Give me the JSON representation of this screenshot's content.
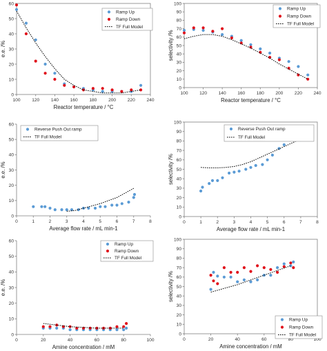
{
  "colors": {
    "ramp_up": "#5b9bd5",
    "ramp_down": "#e0101b",
    "model": "#000000",
    "single": "#5b9bd5"
  },
  "chart_data": [
    {
      "id": "a",
      "type": "scatter",
      "xlabel": "Reactor temperature / °C",
      "ylabel": "e.e. /%",
      "xlim": [
        100,
        240
      ],
      "ylim": [
        0,
        60
      ],
      "xticks": [
        100,
        120,
        140,
        160,
        180,
        200,
        220,
        240
      ],
      "yticks": [
        0,
        10,
        20,
        30,
        40,
        50,
        60
      ],
      "xtick_labels": [
        "100",
        "120",
        "140",
        "160",
        "180",
        "200",
        "220",
        "240"
      ],
      "ytick_labels": [
        "0",
        "10",
        "20",
        "30",
        "40",
        "50",
        "60"
      ],
      "frame": true,
      "legend_position": "top-right",
      "series": [
        {
          "name": "Ramp Up",
          "kind": "points",
          "color": "#5b9bd5",
          "x": [
            100,
            110,
            120,
            130,
            140,
            150,
            160,
            170,
            180,
            190,
            200,
            210,
            220,
            230
          ],
          "y": [
            56,
            47,
            36,
            20,
            14,
            7,
            5,
            4,
            3,
            2,
            2,
            2,
            2,
            6
          ]
        },
        {
          "name": "Ramp Down",
          "kind": "points",
          "color": "#e0101b",
          "x": [
            100,
            110,
            120,
            130,
            140,
            150,
            160,
            170,
            180,
            190,
            200,
            210,
            220,
            230
          ],
          "y": [
            59,
            40,
            22,
            14,
            10,
            6,
            5,
            3,
            4,
            4,
            3,
            2,
            3,
            3
          ]
        },
        {
          "name": "TF Full Model",
          "kind": "line",
          "color": "#000000",
          "x": [
            100,
            110,
            120,
            130,
            140,
            150,
            160,
            170,
            180,
            190,
            200,
            210,
            220,
            230
          ],
          "y": [
            55,
            44,
            34,
            25,
            17,
            10,
            6,
            3,
            2,
            1,
            1,
            1,
            2,
            3
          ]
        }
      ]
    },
    {
      "id": "b",
      "type": "scatter",
      "xlabel": "Reactor temperature / °C",
      "ylabel": "selectivity /%",
      "xlim": [
        100,
        240
      ],
      "ylim": [
        0,
        100
      ],
      "xticks": [
        100,
        120,
        140,
        160,
        180,
        200,
        220,
        240
      ],
      "yticks": [
        0,
        10,
        20,
        30,
        40,
        50,
        60,
        70,
        80,
        90,
        100
      ],
      "xtick_labels": [
        "100",
        "120",
        "140",
        "160",
        "180",
        "200",
        "220",
        "240"
      ],
      "ytick_labels": [
        "0",
        "10",
        "20",
        "30",
        "40",
        "50",
        "60",
        "70",
        "80",
        "90",
        "100"
      ],
      "frame": true,
      "legend_position": "top-right",
      "series": [
        {
          "name": "Ramp Up",
          "kind": "points",
          "color": "#5b9bd5",
          "x": [
            100,
            110,
            120,
            130,
            140,
            150,
            160,
            170,
            180,
            190,
            200,
            210,
            220,
            230
          ],
          "y": [
            68,
            69,
            68,
            66,
            63,
            61,
            56,
            51,
            46,
            41,
            35,
            31,
            25,
            15
          ]
        },
        {
          "name": "Ramp Down",
          "kind": "points",
          "color": "#e0101b",
          "x": [
            100,
            110,
            120,
            130,
            140,
            150,
            160,
            170,
            180,
            190,
            200,
            210,
            220,
            230
          ],
          "y": [
            65,
            71,
            71,
            67,
            70,
            59,
            53,
            48,
            42,
            36,
            33,
            23,
            15,
            10
          ]
        },
        {
          "name": "TF Full Model",
          "kind": "line",
          "color": "#000000",
          "x": [
            100,
            110,
            120,
            130,
            140,
            150,
            160,
            170,
            180,
            190,
            200,
            210,
            220,
            230
          ],
          "y": [
            58,
            61,
            63,
            63,
            61,
            57,
            52,
            47,
            41,
            35,
            28,
            22,
            16,
            10
          ]
        }
      ]
    },
    {
      "id": "c",
      "type": "scatter",
      "xlabel": "Average flow rate / mL min-1",
      "ylabel": "e.e. /%",
      "xlim": [
        0,
        8
      ],
      "ylim": [
        0,
        60
      ],
      "xticks": [
        0,
        1,
        2,
        3,
        4,
        5,
        6,
        7,
        8
      ],
      "yticks": [
        0,
        10,
        20,
        30,
        40,
        50,
        60
      ],
      "xtick_labels": [
        "0",
        "1",
        "2",
        "3",
        "4",
        "5",
        "6",
        "7",
        "8"
      ],
      "ytick_labels": [
        "0",
        "10",
        "20",
        "30",
        "40",
        "50",
        "60"
      ],
      "frame": false,
      "legend_position": "top-left",
      "series": [
        {
          "name": "Reverse Push Out ramp",
          "kind": "points",
          "color": "#5b9bd5",
          "x": [
            1,
            1.5,
            1.7,
            2,
            2.3,
            2.7,
            3,
            3.3,
            3.7,
            4,
            4.3,
            4.7,
            5,
            5.3,
            5.7,
            6,
            6.3,
            6.7,
            7,
            7.05
          ],
          "y": [
            6,
            6,
            6,
            5,
            4,
            4,
            4,
            4,
            4,
            5,
            5,
            5,
            6,
            6,
            7,
            7,
            8,
            9,
            12,
            14
          ]
        },
        {
          "name": "TF Full Model",
          "kind": "line",
          "color": "#000000",
          "x": [
            3,
            3.5,
            4,
            4.5,
            5,
            5.5,
            6,
            6.5,
            7
          ],
          "y": [
            3,
            3.5,
            5,
            6.5,
            8,
            10,
            12,
            15,
            18
          ]
        }
      ]
    },
    {
      "id": "d",
      "type": "scatter",
      "xlabel": "Average flow rate / mL min-1",
      "ylabel": "selectivity /%",
      "xlim": [
        0,
        8
      ],
      "ylim": [
        0,
        100
      ],
      "xticks": [
        0,
        1,
        2,
        3,
        4,
        5,
        6,
        7,
        8
      ],
      "yticks": [
        0,
        10,
        20,
        30,
        40,
        50,
        60,
        70,
        80,
        90,
        100
      ],
      "xtick_labels": [
        "0",
        "1",
        "2",
        "3",
        "4",
        "5",
        "6",
        "7",
        "8"
      ],
      "ytick_labels": [
        "0",
        "10",
        "20",
        "30",
        "40",
        "50",
        "60",
        "70",
        "80",
        "90",
        "100"
      ],
      "frame": true,
      "legend_position": "top-right",
      "series": [
        {
          "name": "Reverse Push Out ramp",
          "kind": "points",
          "color": "#5b9bd5",
          "x": [
            1,
            1.1,
            1.5,
            1.7,
            2,
            2.3,
            2.7,
            3,
            3.3,
            3.7,
            4,
            4.3,
            4.7,
            5,
            5.3,
            5.7,
            6,
            6.3,
            6.6,
            6.9,
            7,
            7.05
          ],
          "y": [
            27,
            31,
            35,
            38,
            38,
            41,
            46,
            47,
            48,
            50,
            52,
            54,
            55,
            60,
            65,
            72,
            76,
            83,
            85,
            83,
            81,
            84
          ]
        },
        {
          "name": "TF Full Model",
          "kind": "line",
          "color": "#000000",
          "x": [
            1,
            1.5,
            2,
            2.5,
            3,
            3.5,
            4,
            4.5,
            5,
            5.5,
            6,
            6.5,
            7
          ],
          "y": [
            52,
            51.5,
            51.5,
            52,
            53,
            55,
            58,
            62,
            66,
            70,
            74,
            78,
            82
          ]
        }
      ]
    },
    {
      "id": "e",
      "type": "scatter",
      "xlabel": "Amine concentration / mM",
      "ylabel": "e.e. /%",
      "xlim": [
        0,
        100
      ],
      "ylim": [
        0,
        60
      ],
      "xticks": [
        0,
        20,
        40,
        60,
        80,
        100
      ],
      "yticks": [
        0,
        10,
        20,
        30,
        40,
        50,
        60
      ],
      "xtick_labels": [
        "0",
        "20",
        "40",
        "60",
        "80",
        "100"
      ],
      "ytick_labels": [
        "0",
        "10",
        "20",
        "30",
        "40",
        "50",
        "60"
      ],
      "frame": false,
      "legend_position": "top-right",
      "series": [
        {
          "name": "Ramp Up",
          "kind": "points",
          "color": "#5b9bd5",
          "x": [
            20,
            25,
            30,
            35,
            40,
            45,
            50,
            55,
            60,
            65,
            70,
            75,
            80,
            82
          ],
          "y": [
            4,
            4,
            4,
            4,
            3,
            3,
            3,
            3,
            3,
            3,
            3,
            3,
            3,
            4
          ]
        },
        {
          "name": "Ramp Down",
          "kind": "points",
          "color": "#e0101b",
          "x": [
            20,
            25,
            30,
            35,
            40,
            45,
            50,
            55,
            60,
            65,
            70,
            75,
            80,
            82
          ],
          "y": [
            5,
            5,
            6,
            5,
            5,
            4,
            4,
            4,
            4,
            4,
            4,
            5,
            5,
            7
          ]
        },
        {
          "name": "TF Full Model",
          "kind": "line",
          "color": "#000000",
          "x": [
            20,
            30,
            40,
            50,
            60,
            70,
            80
          ],
          "y": [
            7,
            6,
            5,
            4.5,
            4,
            4,
            4
          ]
        }
      ]
    },
    {
      "id": "f",
      "type": "scatter",
      "xlabel": "Amine concentration / mM",
      "ylabel": "selectivity /%",
      "xlim": [
        0,
        100
      ],
      "ylim": [
        0,
        100
      ],
      "xticks": [
        0,
        20,
        40,
        60,
        80,
        100
      ],
      "yticks": [
        0,
        10,
        20,
        30,
        40,
        50,
        60,
        70,
        80,
        90,
        100
      ],
      "xtick_labels": [
        "0",
        "20",
        "40",
        "60",
        "80",
        "100"
      ],
      "ytick_labels": [
        "0",
        "10",
        "20",
        "30",
        "40",
        "50",
        "60",
        "70",
        "80",
        "90",
        "100"
      ],
      "frame": true,
      "legend_position": "bottom-right",
      "series": [
        {
          "name": "Ramp Up",
          "kind": "points",
          "color": "#5b9bd5",
          "x": [
            20,
            22,
            25,
            30,
            35,
            40,
            45,
            50,
            55,
            60,
            65,
            70,
            75,
            80,
            82
          ],
          "y": [
            47,
            65,
            61,
            60,
            60,
            55,
            57,
            55,
            57,
            62,
            62,
            70,
            74,
            72,
            76
          ]
        },
        {
          "name": "Ramp Down",
          "kind": "points",
          "color": "#e0101b",
          "x": [
            20,
            22,
            25,
            30,
            35,
            40,
            45,
            50,
            55,
            60,
            65,
            70,
            75,
            80,
            82
          ],
          "y": [
            62,
            56,
            53,
            70,
            65,
            65,
            70,
            66,
            72,
            70,
            68,
            65,
            71,
            75,
            70
          ]
        },
        {
          "name": "TF Full Model",
          "kind": "line",
          "color": "#000000",
          "x": [
            20,
            30,
            40,
            50,
            60,
            70,
            80
          ],
          "y": [
            44,
            48,
            52,
            57,
            62,
            67,
            72
          ]
        }
      ]
    }
  ]
}
